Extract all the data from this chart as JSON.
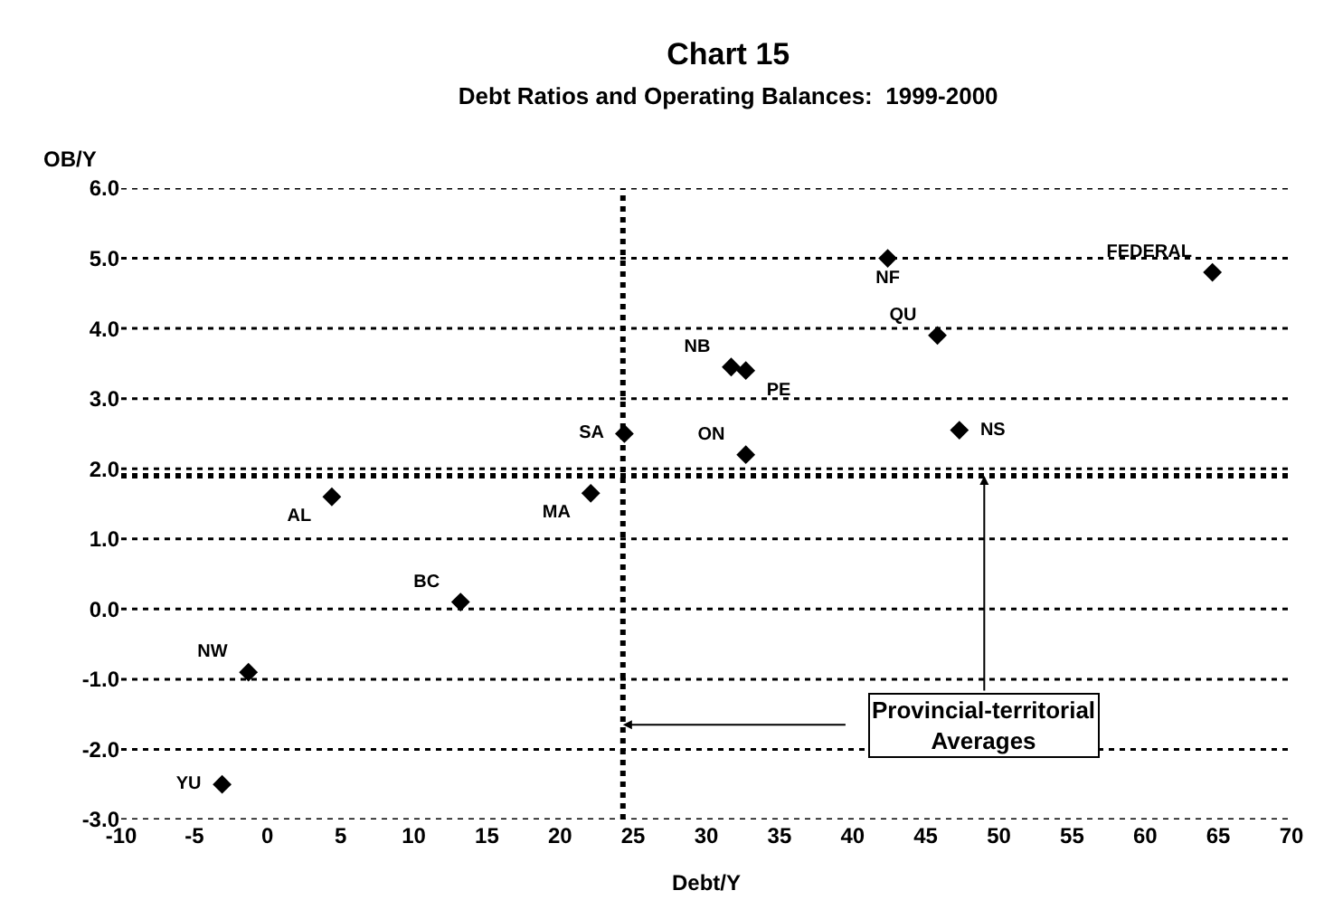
{
  "chart_data": {
    "type": "scatter",
    "title": "Chart 15",
    "subtitle": "Debt Ratios and Operating Balances:  1999-2000",
    "xlabel": "Debt/Y",
    "ylabel": "OB/Y",
    "series": [
      {
        "name": "FEDERAL",
        "color": "#000000",
        "x": [
          64.6
        ],
        "values": [
          4.8
        ]
      },
      {
        "name": "NF",
        "color": "#000000",
        "x": [
          42.4
        ],
        "values": [
          5.0
        ]
      },
      {
        "name": "QU",
        "color": "#000000",
        "x": [
          45.8
        ],
        "values": [
          3.9
        ]
      },
      {
        "name": "NB",
        "color": "#000000",
        "x": [
          31.7
        ],
        "values": [
          3.45
        ]
      },
      {
        "name": "PE",
        "color": "#000000",
        "x": [
          32.7
        ],
        "values": [
          3.4
        ]
      },
      {
        "name": "ON",
        "color": "#000000",
        "x": [
          32.7
        ],
        "values": [
          2.2
        ]
      },
      {
        "name": "NS",
        "color": "#000000",
        "x": [
          47.3
        ],
        "values": [
          2.55
        ]
      },
      {
        "name": "SA",
        "color": "#000000",
        "x": [
          24.4
        ],
        "values": [
          2.5
        ]
      },
      {
        "name": "MA",
        "color": "#000000",
        "x": [
          22.1
        ],
        "values": [
          1.65
        ]
      },
      {
        "name": "AL",
        "color": "#000000",
        "x": [
          4.4
        ],
        "values": [
          1.6
        ]
      },
      {
        "name": "BC",
        "color": "#000000",
        "x": [
          13.2
        ],
        "values": [
          0.1
        ]
      },
      {
        "name": "NW",
        "color": "#000000",
        "x": [
          -1.3
        ],
        "values": [
          -0.9
        ]
      },
      {
        "name": "YU",
        "color": "#000000",
        "x": [
          -3.1
        ],
        "values": [
          -2.5
        ]
      }
    ],
    "xlim": [
      -10,
      70
    ],
    "xticks": [
      -10,
      -5,
      0,
      5,
      10,
      15,
      20,
      25,
      30,
      35,
      40,
      45,
      50,
      55,
      60,
      65,
      70
    ],
    "ylim": [
      -3,
      6
    ],
    "yticks": [
      {
        "value": -3,
        "label": "-3.0"
      },
      {
        "value": -2,
        "label": "-2.0"
      },
      {
        "value": -1,
        "label": "-1.0"
      },
      {
        "value": 0,
        "label": "0.0"
      },
      {
        "value": 1,
        "label": "1.0"
      },
      {
        "value": 2,
        "label": "2.0"
      },
      {
        "value": 3,
        "label": "3.0"
      },
      {
        "value": 4,
        "label": "4.0"
      },
      {
        "value": 5,
        "label": "5.0"
      },
      {
        "value": 6,
        "label": "6.0"
      }
    ],
    "ref_lines": [
      {
        "axis": "x",
        "value": 24.3,
        "line_style": "dotted",
        "color": "#000000"
      },
      {
        "axis": "y",
        "value": 1.9,
        "line_style": "dotted",
        "color": "#000000"
      }
    ],
    "annotations": [
      {
        "text": "Provincial-territorial\nAverages",
        "x": 24.3,
        "y": -1.65
      }
    ],
    "grid": "y",
    "legend": false,
    "marker": "diamond"
  }
}
